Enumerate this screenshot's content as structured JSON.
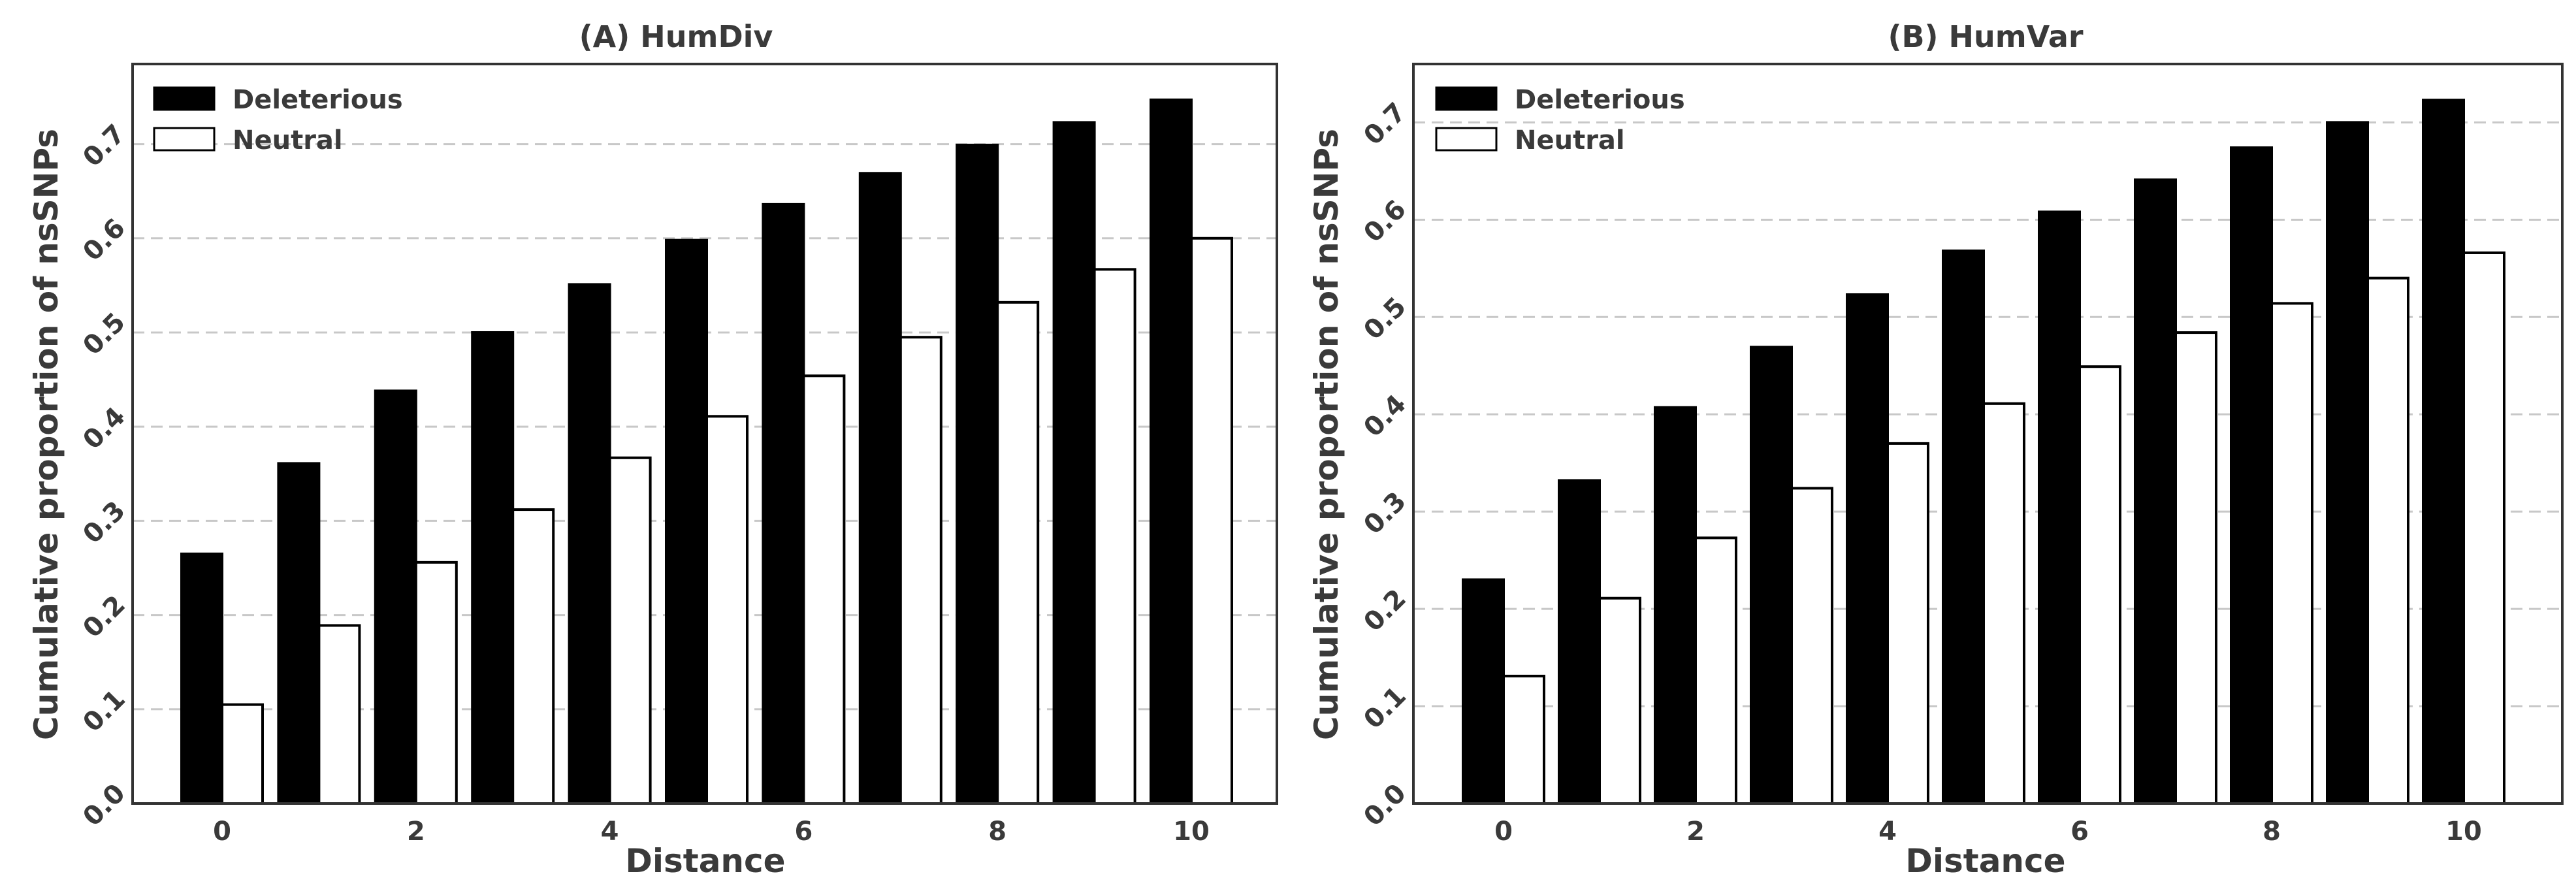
{
  "chart_data": [
    {
      "type": "bar",
      "title": "(A) HumDiv",
      "xlabel": "Distance",
      "ylabel": "Cumulative proportion of nsSNPs",
      "categories": [
        "0",
        "1",
        "2",
        "3",
        "4",
        "5",
        "6",
        "7",
        "8",
        "9",
        "10"
      ],
      "x_tick_labels": [
        "0",
        "2",
        "4",
        "6",
        "8",
        "10"
      ],
      "y_tick_labels": [
        "0.0",
        "0.1",
        "0.2",
        "0.3",
        "0.4",
        "0.5",
        "0.6",
        "0.7"
      ],
      "ylim": [
        0,
        0.785
      ],
      "grid": true,
      "legend_position": "top-left",
      "series": [
        {
          "name": "Deleterious",
          "color": "#000000",
          "values": [
            0.265,
            0.361,
            0.438,
            0.5,
            0.551,
            0.598,
            0.636,
            0.669,
            0.699,
            0.723,
            0.747
          ]
        },
        {
          "name": "Neutral",
          "color": "#ffffff",
          "values": [
            0.105,
            0.189,
            0.256,
            0.312,
            0.367,
            0.411,
            0.454,
            0.495,
            0.532,
            0.567,
            0.6
          ]
        }
      ]
    },
    {
      "type": "bar",
      "title": "(B) HumVar",
      "xlabel": "Distance",
      "ylabel": "Cumulative proportion of nsSNPs",
      "categories": [
        "0",
        "1",
        "2",
        "3",
        "4",
        "5",
        "6",
        "7",
        "8",
        "9",
        "10"
      ],
      "x_tick_labels": [
        "0",
        "2",
        "4",
        "6",
        "8",
        "10"
      ],
      "y_tick_labels": [
        "0.0",
        "0.1",
        "0.2",
        "0.3",
        "0.4",
        "0.5",
        "0.6",
        "0.7"
      ],
      "ylim": [
        0,
        0.76
      ],
      "grid": true,
      "legend_position": "top-left",
      "series": [
        {
          "name": "Deleterious",
          "color": "#000000",
          "values": [
            0.23,
            0.332,
            0.407,
            0.469,
            0.523,
            0.568,
            0.608,
            0.641,
            0.674,
            0.7,
            0.723
          ]
        },
        {
          "name": "Neutral",
          "color": "#ffffff",
          "values": [
            0.131,
            0.211,
            0.273,
            0.324,
            0.37,
            0.411,
            0.449,
            0.484,
            0.514,
            0.54,
            0.566
          ]
        }
      ]
    }
  ]
}
